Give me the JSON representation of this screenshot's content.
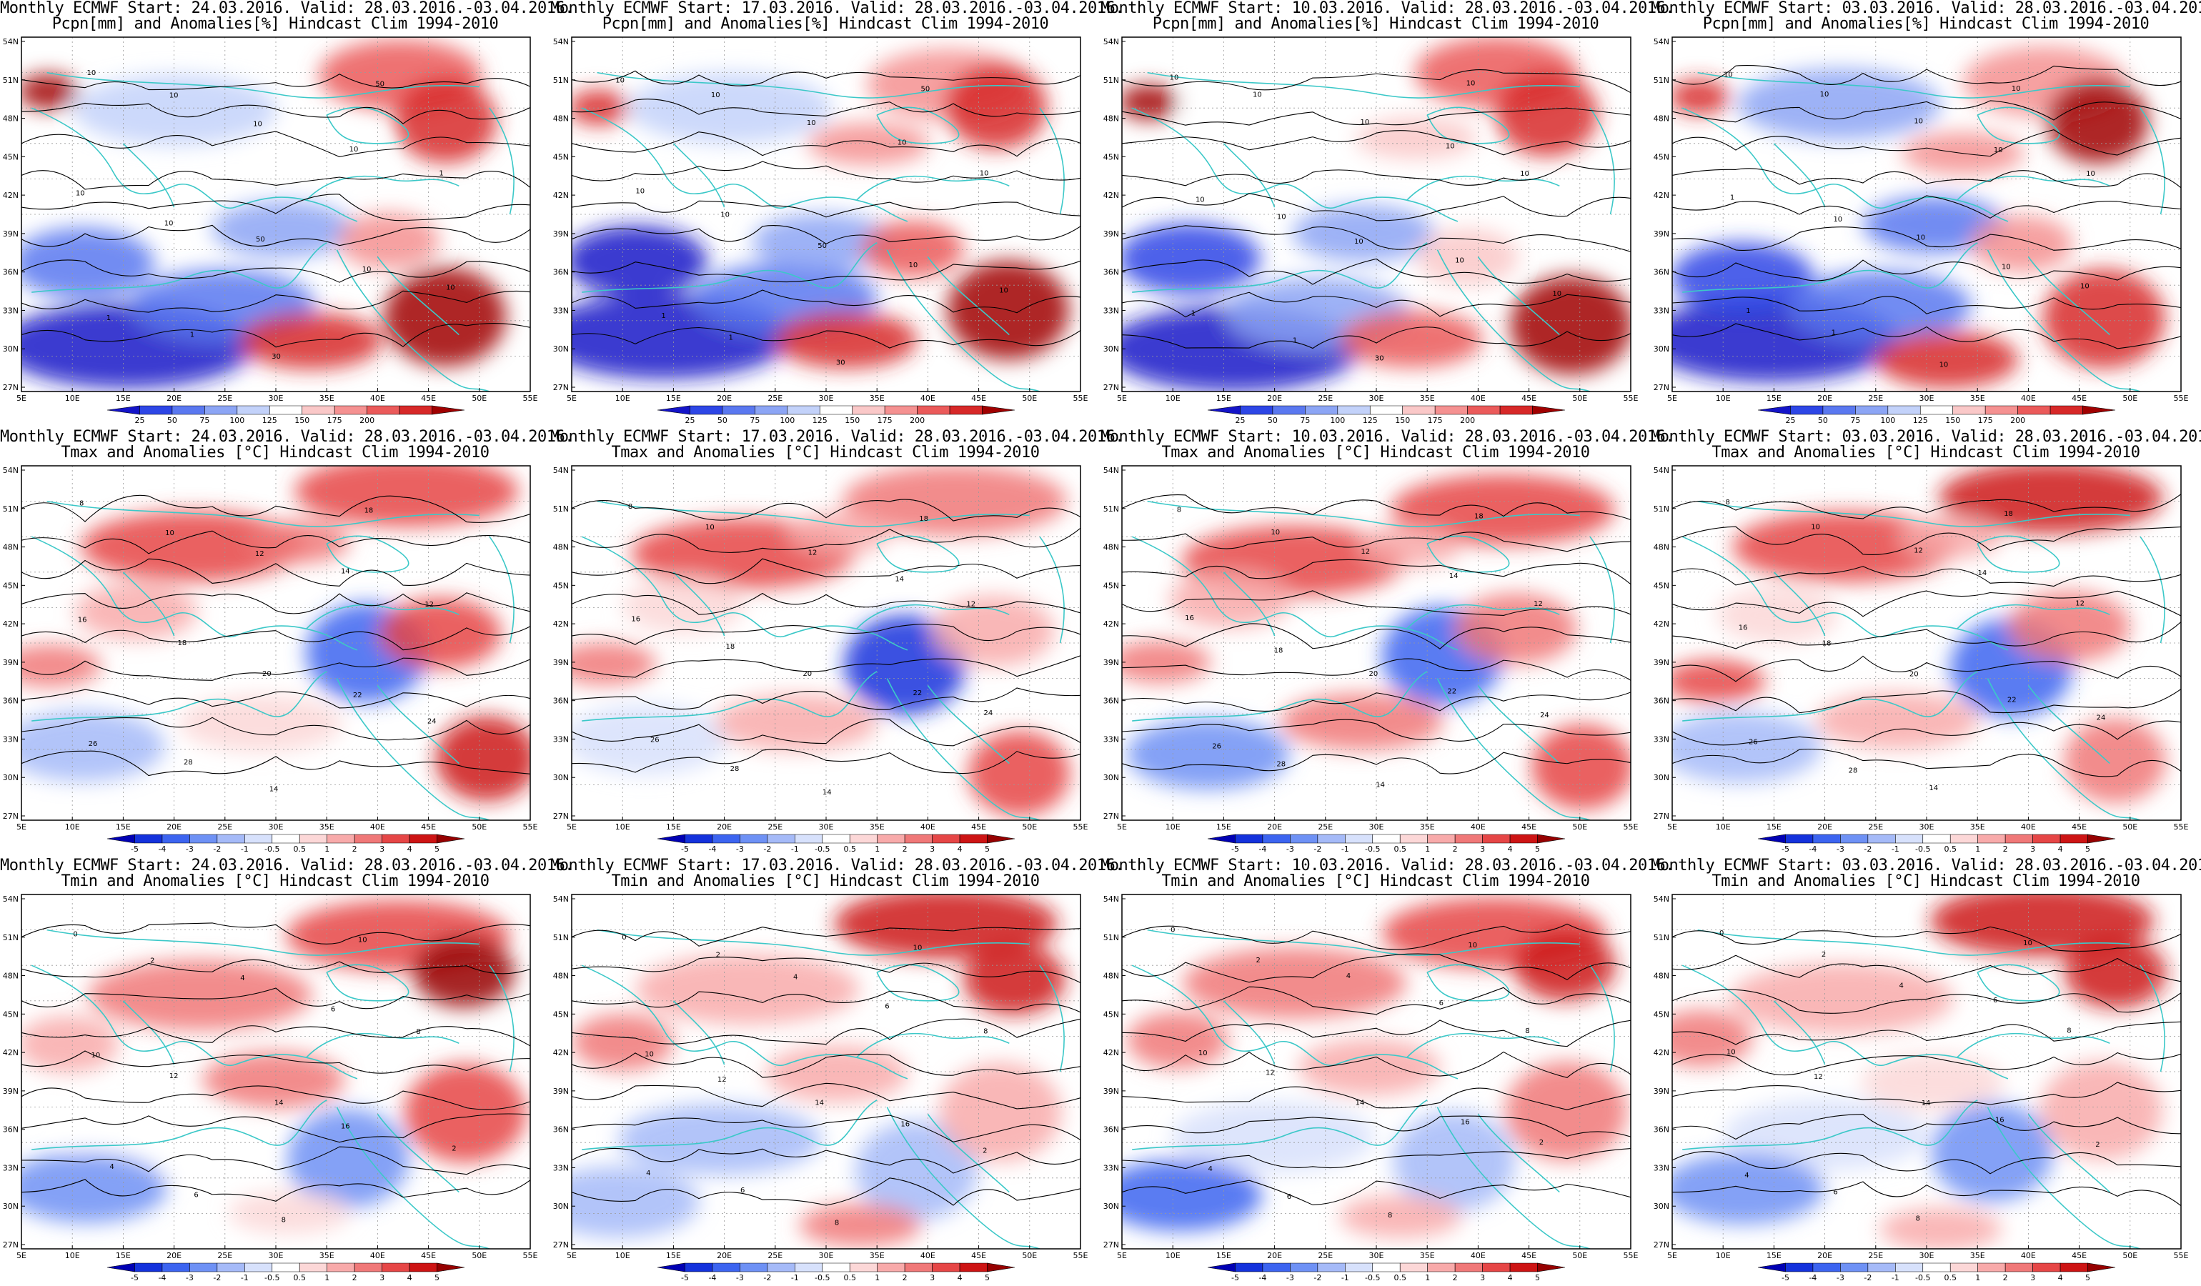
{
  "figure": {
    "panels": [
      {
        "title": "Monthly ECMWF Start: 24.03.2016. Valid: 28.03.2016.-03.04.2016.",
        "subtitle": "Pcpn[mm] and Anomalies[%] Hindcast Clim 1994-2010",
        "variable": "pcpn",
        "contour_labels": [
          "10",
          "10",
          "10",
          "10",
          "1",
          "10",
          "10",
          "50",
          "10",
          "10",
          "1",
          "1",
          "30",
          "50"
        ]
      },
      {
        "title": "Monthly ECMWF Start: 17.03.2016. Valid: 28.03.2016.-03.04.2016.",
        "subtitle": "Pcpn[mm] and Anomalies[%] Hindcast Clim 1994-2010",
        "variable": "pcpn",
        "contour_labels": [
          "10",
          "10",
          "10",
          "10",
          "10",
          "10",
          "10",
          "50",
          "10",
          "10",
          "1",
          "1",
          "30",
          "50"
        ]
      },
      {
        "title": "Monthly ECMWF Start: 10.03.2016. Valid: 28.03.2016.-03.04.2016.",
        "subtitle": "Pcpn[mm] and Anomalies[%] Hindcast Clim 1994-2010",
        "variable": "pcpn",
        "contour_labels": [
          "10",
          "10",
          "10",
          "10",
          "10",
          "10",
          "10",
          "10",
          "10",
          "10",
          "1",
          "1",
          "30",
          "10"
        ]
      },
      {
        "title": "Monthly ECMWF Start: 03.03.2016. Valid: 28.03.2016.-03.04.2016.",
        "subtitle": "Pcpn[mm] and Anomalies[%] Hindcast Clim 1994-2010",
        "variable": "pcpn",
        "contour_labels": [
          "10",
          "10",
          "10",
          "10",
          "10",
          "1",
          "10",
          "10",
          "10",
          "10",
          "1",
          "1",
          "10",
          "10"
        ]
      },
      {
        "title": "Monthly ECMWF Start: 24.03.2016. Valid: 28.03.2016.-03.04.2016.",
        "subtitle": "Tmax and Anomalies [°C] Hindcast Clim 1994-2010",
        "variable": "tmax",
        "contour_labels": [
          "8",
          "10",
          "12",
          "14",
          "12",
          "16",
          "18",
          "20",
          "22",
          "24",
          "26",
          "28",
          "14",
          "18"
        ]
      },
      {
        "title": "Monthly ECMWF Start: 17.03.2016. Valid: 28.03.2016.-03.04.2016.",
        "subtitle": "Tmax and Anomalies [°C] Hindcast Clim 1994-2010",
        "variable": "tmax",
        "contour_labels": [
          "8",
          "10",
          "12",
          "14",
          "12",
          "16",
          "18",
          "20",
          "22",
          "24",
          "26",
          "28",
          "14",
          "18"
        ]
      },
      {
        "title": "Monthly ECMWF Start: 10.03.2016. Valid: 28.03.2016.-03.04.2016.",
        "subtitle": "Tmax and Anomalies [°C] Hindcast Clim 1994-2010",
        "variable": "tmax",
        "contour_labels": [
          "8",
          "10",
          "12",
          "14",
          "12",
          "16",
          "18",
          "20",
          "22",
          "24",
          "26",
          "28",
          "14",
          "18"
        ]
      },
      {
        "title": "Monthly ECMWF Start: 03.03.2016. Valid: 28.03.2016.-03.04.2016.",
        "subtitle": "Tmax and Anomalies [°C] Hindcast Clim 1994-2010",
        "variable": "tmax",
        "contour_labels": [
          "8",
          "10",
          "12",
          "14",
          "12",
          "16",
          "18",
          "20",
          "22",
          "24",
          "26",
          "28",
          "14",
          "18"
        ]
      },
      {
        "title": "Monthly ECMWF Start: 24.03.2016. Valid: 28.03.2016.-03.04.2016.",
        "subtitle": "Tmin and Anomalies [°C] Hindcast Clim 1994-2010",
        "variable": "tmin",
        "contour_labels": [
          "0",
          "2",
          "4",
          "6",
          "8",
          "10",
          "12",
          "14",
          "16",
          "2",
          "4",
          "6",
          "8",
          "10"
        ]
      },
      {
        "title": "Monthly ECMWF Start: 17.03.2016. Valid: 28.03.2016.-03.04.2016.",
        "subtitle": "Tmin and Anomalies [°C] Hindcast Clim 1994-2010",
        "variable": "tmin",
        "contour_labels": [
          "0",
          "2",
          "4",
          "6",
          "8",
          "10",
          "12",
          "14",
          "16",
          "2",
          "4",
          "6",
          "8",
          "10"
        ]
      },
      {
        "title": "Monthly ECMWF Start: 10.03.2016. Valid: 28.03.2016.-03.04.2016.",
        "subtitle": "Tmin and Anomalies [°C] Hindcast Clim 1994-2010",
        "variable": "tmin",
        "contour_labels": [
          "0",
          "2",
          "4",
          "6",
          "8",
          "10",
          "12",
          "14",
          "16",
          "2",
          "4",
          "6",
          "8",
          "10"
        ]
      },
      {
        "title": "Monthly ECMWF Start: 03.03.2016. Valid: 28.03.2016.-03.04.2016.",
        "subtitle": "Tmin and Anomalies [°C] Hindcast Clim 1994-2010",
        "variable": "tmin",
        "contour_labels": [
          "0",
          "2",
          "4",
          "6",
          "8",
          "10",
          "12",
          "14",
          "16",
          "2",
          "4",
          "6",
          "8",
          "10"
        ]
      }
    ],
    "lat_labels": [
      "54N",
      "51N",
      "48N",
      "45N",
      "42N",
      "39N",
      "36N",
      "33N",
      "30N",
      "27N"
    ],
    "lon_labels": [
      "5E",
      "10E",
      "15E",
      "20E",
      "25E",
      "30E",
      "35E",
      "40E",
      "45E",
      "50E",
      "55E"
    ],
    "colorbars": {
      "pcpn": {
        "labels": [
          "25",
          "50",
          "75",
          "100",
          "125",
          "150",
          "175",
          "200"
        ],
        "colors": [
          "#1414c8",
          "#2d46e6",
          "#5a78f0",
          "#8ca5f5",
          "#c3d2fa",
          "#ffffff",
          "#fac8c8",
          "#f59191",
          "#eb5a5a",
          "#d72828",
          "#a00000"
        ]
      },
      "temp": {
        "labels": [
          "-5",
          "-4",
          "-3",
          "-2",
          "-1",
          "-0.5",
          "0.5",
          "1",
          "2",
          "3",
          "4",
          "5"
        ],
        "colors": [
          "#0000b4",
          "#1432dc",
          "#3c64f0",
          "#6e91f5",
          "#a5baf8",
          "#d7e1fc",
          "#ffffff",
          "#fcd7d7",
          "#f8aaaa",
          "#f07878",
          "#e64646",
          "#cd1414",
          "#960000"
        ]
      }
    },
    "coastline_color": "#3cc8c8",
    "contour_color": "#000000"
  }
}
